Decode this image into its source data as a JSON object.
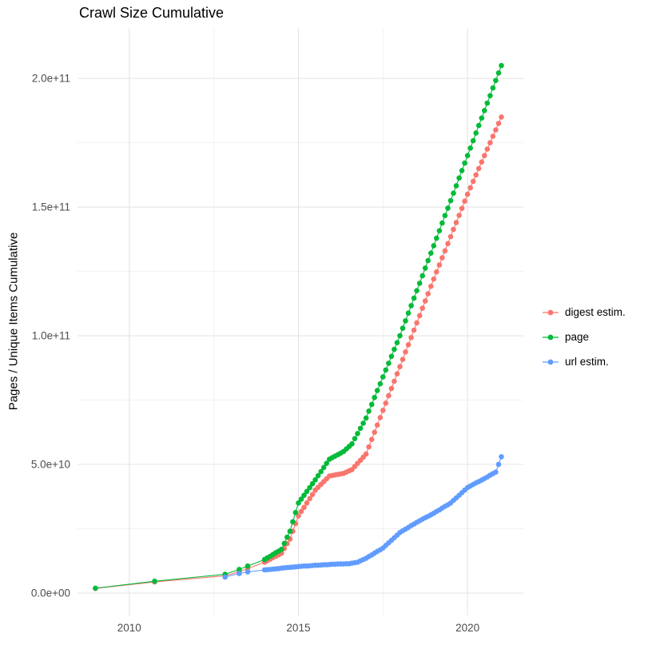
{
  "chart_data": {
    "type": "scatter",
    "title": "Crawl Size Cumulative",
    "xlabel": "",
    "ylabel": "Pages / Unique Items Cumulative",
    "xlim": [
      2008.47,
      2021.65
    ],
    "ylim": [
      -8700000000.0,
      219600000000.0
    ],
    "x_ticks": [
      2010,
      2015,
      2020
    ],
    "x_tick_labels": [
      "2010",
      "2015",
      "2020"
    ],
    "y_ticks": [
      0,
      50000000000.0,
      100000000000.0,
      150000000000.0,
      200000000000.0
    ],
    "y_tick_labels": [
      "0.0e+00",
      "5.0e+10",
      "1.0e+11",
      "1.5e+11",
      "2.0e+11"
    ],
    "grid": true,
    "grid_color_major": "#E4E4E4",
    "grid_color_minor": "#F1F1F1",
    "tick_label_color": "#4D4D4D",
    "text_color": "#000000",
    "background": "#FFFFFF",
    "legend_position": "right",
    "y_value_scale": 1000000000.0,
    "y_values_in": "billions of pages/items (multiply stored y by 1e9)",
    "series": [
      {
        "id": "digest",
        "name": "digest estim.",
        "color": "#F8766D",
        "points": [
          [
            2009.0,
            1.8
          ],
          [
            2010.75,
            4.3
          ],
          [
            2012.833,
            6.7
          ],
          [
            2013.25,
            8.3
          ],
          [
            2013.5,
            9.5
          ],
          [
            2014.0,
            12.0
          ],
          [
            2014.083,
            12.6
          ],
          [
            2014.167,
            13.2
          ],
          [
            2014.25,
            13.8
          ],
          [
            2014.333,
            14.3
          ],
          [
            2014.417,
            14.9
          ],
          [
            2014.5,
            15.5
          ],
          [
            2014.583,
            17.3
          ],
          [
            2014.667,
            19.2
          ],
          [
            2014.75,
            21.0
          ],
          [
            2014.833,
            24.0
          ],
          [
            2014.917,
            27.0
          ],
          [
            2015.0,
            30.0
          ],
          [
            2015.083,
            31.7
          ],
          [
            2015.167,
            33.3
          ],
          [
            2015.25,
            35.0
          ],
          [
            2015.333,
            36.7
          ],
          [
            2015.417,
            38.3
          ],
          [
            2015.5,
            40.0
          ],
          [
            2015.583,
            41.1
          ],
          [
            2015.667,
            42.2
          ],
          [
            2015.75,
            43.3
          ],
          [
            2015.833,
            44.4
          ],
          [
            2015.917,
            45.5
          ],
          [
            2016.0,
            45.7
          ],
          [
            2016.083,
            45.9
          ],
          [
            2016.167,
            46.1
          ],
          [
            2016.25,
            46.3
          ],
          [
            2016.333,
            46.5
          ],
          [
            2016.417,
            47.0
          ],
          [
            2016.5,
            47.5
          ],
          [
            2016.583,
            48.0
          ],
          [
            2016.667,
            49.2
          ],
          [
            2016.75,
            50.4
          ],
          [
            2016.833,
            51.6
          ],
          [
            2016.917,
            52.8
          ],
          [
            2017.0,
            54.0
          ],
          [
            2017.083,
            56.8
          ],
          [
            2017.167,
            59.7
          ],
          [
            2017.25,
            62.5
          ],
          [
            2017.333,
            65.3
          ],
          [
            2017.417,
            68.2
          ],
          [
            2017.5,
            71.0
          ],
          [
            2017.583,
            73.8
          ],
          [
            2017.667,
            76.7
          ],
          [
            2017.75,
            79.5
          ],
          [
            2017.833,
            82.3
          ],
          [
            2017.917,
            85.2
          ],
          [
            2018.0,
            88.0
          ],
          [
            2018.083,
            90.8
          ],
          [
            2018.167,
            93.7
          ],
          [
            2018.25,
            96.5
          ],
          [
            2018.333,
            99.3
          ],
          [
            2018.417,
            102.2
          ],
          [
            2018.5,
            105.0
          ],
          [
            2018.583,
            107.8
          ],
          [
            2018.667,
            110.7
          ],
          [
            2018.75,
            113.5
          ],
          [
            2018.833,
            116.3
          ],
          [
            2018.917,
            119.2
          ],
          [
            2019.0,
            122.0
          ],
          [
            2019.083,
            124.8
          ],
          [
            2019.167,
            127.5
          ],
          [
            2019.25,
            130.3
          ],
          [
            2019.333,
            133.0
          ],
          [
            2019.417,
            135.8
          ],
          [
            2019.5,
            138.5
          ],
          [
            2019.583,
            141.3
          ],
          [
            2019.667,
            144.0
          ],
          [
            2019.75,
            146.8
          ],
          [
            2019.833,
            149.5
          ],
          [
            2019.917,
            152.3
          ],
          [
            2020.0,
            155.0
          ],
          [
            2020.083,
            157.5
          ],
          [
            2020.167,
            160.0
          ],
          [
            2020.25,
            162.5
          ],
          [
            2020.333,
            165.0
          ],
          [
            2020.417,
            167.5
          ],
          [
            2020.5,
            170.0
          ],
          [
            2020.583,
            172.5
          ],
          [
            2020.667,
            175.0
          ],
          [
            2020.75,
            177.5
          ],
          [
            2020.833,
            180.0
          ],
          [
            2020.917,
            182.5
          ],
          [
            2021.0,
            185.0
          ]
        ]
      },
      {
        "id": "page",
        "name": "page",
        "color": "#00BA38",
        "points": [
          [
            2009.0,
            1.9
          ],
          [
            2010.75,
            4.6
          ],
          [
            2012.833,
            7.3
          ],
          [
            2013.25,
            9.2
          ],
          [
            2013.5,
            10.5
          ],
          [
            2014.0,
            13.0
          ],
          [
            2014.083,
            13.7
          ],
          [
            2014.167,
            14.3
          ],
          [
            2014.25,
            15.0
          ],
          [
            2014.333,
            15.7
          ],
          [
            2014.417,
            16.3
          ],
          [
            2014.5,
            17.0
          ],
          [
            2014.583,
            19.3
          ],
          [
            2014.667,
            21.7
          ],
          [
            2014.75,
            24.0
          ],
          [
            2014.833,
            27.7
          ],
          [
            2014.917,
            31.3
          ],
          [
            2015.0,
            35.0
          ],
          [
            2015.083,
            36.5
          ],
          [
            2015.167,
            38.0
          ],
          [
            2015.25,
            39.5
          ],
          [
            2015.333,
            41.0
          ],
          [
            2015.417,
            42.5
          ],
          [
            2015.5,
            44.0
          ],
          [
            2015.583,
            45.6
          ],
          [
            2015.667,
            47.2
          ],
          [
            2015.75,
            48.8
          ],
          [
            2015.833,
            50.4
          ],
          [
            2015.917,
            52.0
          ],
          [
            2016.0,
            52.6
          ],
          [
            2016.083,
            53.2
          ],
          [
            2016.167,
            53.8
          ],
          [
            2016.25,
            54.4
          ],
          [
            2016.333,
            55.0
          ],
          [
            2016.417,
            56.0
          ],
          [
            2016.5,
            57.0
          ],
          [
            2016.583,
            58.0
          ],
          [
            2016.667,
            60.0
          ],
          [
            2016.75,
            62.0
          ],
          [
            2016.833,
            64.0
          ],
          [
            2016.917,
            66.0
          ],
          [
            2017.0,
            68.0
          ],
          [
            2017.083,
            70.7
          ],
          [
            2017.167,
            73.3
          ],
          [
            2017.25,
            76.0
          ],
          [
            2017.333,
            78.7
          ],
          [
            2017.417,
            81.3
          ],
          [
            2017.5,
            84.0
          ],
          [
            2017.583,
            86.7
          ],
          [
            2017.667,
            89.3
          ],
          [
            2017.75,
            92.0
          ],
          [
            2017.833,
            94.7
          ],
          [
            2017.917,
            97.3
          ],
          [
            2018.0,
            100.0
          ],
          [
            2018.083,
            102.9
          ],
          [
            2018.167,
            105.8
          ],
          [
            2018.25,
            108.8
          ],
          [
            2018.333,
            111.7
          ],
          [
            2018.417,
            114.6
          ],
          [
            2018.5,
            117.5
          ],
          [
            2018.583,
            120.4
          ],
          [
            2018.667,
            123.3
          ],
          [
            2018.75,
            126.3
          ],
          [
            2018.833,
            129.2
          ],
          [
            2018.917,
            132.1
          ],
          [
            2019.0,
            135.0
          ],
          [
            2019.083,
            137.9
          ],
          [
            2019.167,
            140.8
          ],
          [
            2019.25,
            143.8
          ],
          [
            2019.333,
            146.7
          ],
          [
            2019.417,
            149.6
          ],
          [
            2019.5,
            152.5
          ],
          [
            2019.583,
            155.4
          ],
          [
            2019.667,
            158.3
          ],
          [
            2019.75,
            161.3
          ],
          [
            2019.833,
            164.2
          ],
          [
            2019.917,
            167.1
          ],
          [
            2020.0,
            170.0
          ],
          [
            2020.083,
            172.9
          ],
          [
            2020.167,
            175.8
          ],
          [
            2020.25,
            178.8
          ],
          [
            2020.333,
            181.7
          ],
          [
            2020.417,
            184.6
          ],
          [
            2020.5,
            187.5
          ],
          [
            2020.583,
            190.4
          ],
          [
            2020.667,
            193.3
          ],
          [
            2020.75,
            196.3
          ],
          [
            2020.833,
            199.2
          ],
          [
            2020.917,
            202.1
          ],
          [
            2021.0,
            205.0
          ]
        ]
      },
      {
        "id": "url",
        "name": "url estim.",
        "color": "#619CFF",
        "points": [
          [
            2012.833,
            6.2
          ],
          [
            2013.25,
            7.6
          ],
          [
            2013.5,
            8.2
          ],
          [
            2014.0,
            9.0
          ],
          [
            2014.083,
            9.1
          ],
          [
            2014.167,
            9.2
          ],
          [
            2014.25,
            9.3
          ],
          [
            2014.333,
            9.4
          ],
          [
            2014.417,
            9.5
          ],
          [
            2014.5,
            9.7
          ],
          [
            2014.583,
            9.8
          ],
          [
            2014.667,
            9.9
          ],
          [
            2014.75,
            10.0
          ],
          [
            2014.833,
            10.1
          ],
          [
            2014.917,
            10.2
          ],
          [
            2015.0,
            10.3
          ],
          [
            2015.083,
            10.4
          ],
          [
            2015.167,
            10.5
          ],
          [
            2015.25,
            10.5
          ],
          [
            2015.333,
            10.6
          ],
          [
            2015.417,
            10.7
          ],
          [
            2015.5,
            10.8
          ],
          [
            2015.583,
            10.8
          ],
          [
            2015.667,
            10.9
          ],
          [
            2015.75,
            11.0
          ],
          [
            2015.833,
            11.0
          ],
          [
            2015.917,
            11.1
          ],
          [
            2016.0,
            11.2
          ],
          [
            2016.083,
            11.2
          ],
          [
            2016.167,
            11.3
          ],
          [
            2016.25,
            11.3
          ],
          [
            2016.333,
            11.3
          ],
          [
            2016.417,
            11.4
          ],
          [
            2016.5,
            11.4
          ],
          [
            2016.583,
            11.6
          ],
          [
            2016.667,
            11.8
          ],
          [
            2016.75,
            12.0
          ],
          [
            2016.833,
            12.5
          ],
          [
            2016.917,
            13.0
          ],
          [
            2017.0,
            13.5
          ],
          [
            2017.083,
            14.2
          ],
          [
            2017.167,
            14.8
          ],
          [
            2017.25,
            15.5
          ],
          [
            2017.333,
            16.2
          ],
          [
            2017.417,
            16.8
          ],
          [
            2017.5,
            17.5
          ],
          [
            2017.583,
            18.5
          ],
          [
            2017.667,
            19.5
          ],
          [
            2017.75,
            20.5
          ],
          [
            2017.833,
            21.5
          ],
          [
            2017.917,
            22.5
          ],
          [
            2018.0,
            23.5
          ],
          [
            2018.083,
            24.2
          ],
          [
            2018.167,
            24.8
          ],
          [
            2018.25,
            25.5
          ],
          [
            2018.333,
            26.2
          ],
          [
            2018.417,
            26.8
          ],
          [
            2018.5,
            27.5
          ],
          [
            2018.583,
            28.1
          ],
          [
            2018.667,
            28.7
          ],
          [
            2018.75,
            29.3
          ],
          [
            2018.833,
            29.8
          ],
          [
            2018.917,
            30.4
          ],
          [
            2019.0,
            31.0
          ],
          [
            2019.083,
            31.7
          ],
          [
            2019.167,
            32.3
          ],
          [
            2019.25,
            33.0
          ],
          [
            2019.333,
            33.7
          ],
          [
            2019.417,
            34.3
          ],
          [
            2019.5,
            35.0
          ],
          [
            2019.583,
            36.0
          ],
          [
            2019.667,
            37.0
          ],
          [
            2019.75,
            38.0
          ],
          [
            2019.833,
            39.0
          ],
          [
            2019.917,
            40.0
          ],
          [
            2020.0,
            41.0
          ],
          [
            2020.083,
            41.6
          ],
          [
            2020.167,
            42.2
          ],
          [
            2020.25,
            42.8
          ],
          [
            2020.333,
            43.3
          ],
          [
            2020.417,
            43.9
          ],
          [
            2020.5,
            44.5
          ],
          [
            2020.583,
            45.1
          ],
          [
            2020.667,
            45.8
          ],
          [
            2020.75,
            46.4
          ],
          [
            2020.833,
            47.0
          ],
          [
            2020.917,
            50.0
          ],
          [
            2021.0,
            53.0
          ]
        ]
      }
    ]
  }
}
